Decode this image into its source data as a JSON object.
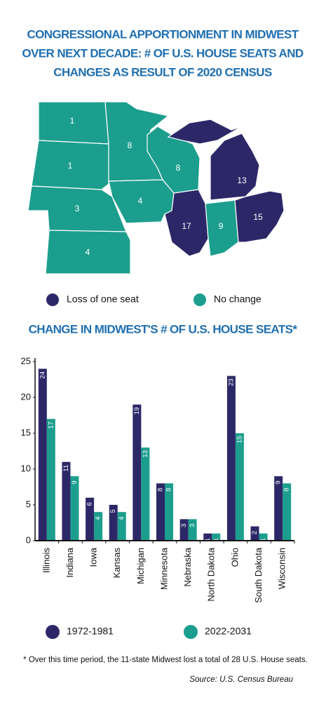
{
  "title": [
    "CONGRESSIONAL APPORTIONMENT IN MIDWEST",
    "OVER NEXT DECADE: # OF U.S. HOUSE SEATS AND",
    "CHANGES AS RESULT OF 2020 CENSUS"
  ],
  "map": {
    "states": [
      {
        "seats": 1,
        "color": "#1c9e8e"
      },
      {
        "seats": 1,
        "color": "#1c9e8e"
      },
      {
        "seats": 3,
        "color": "#1c9e8e"
      },
      {
        "seats": 4,
        "color": "#1c9e8e"
      },
      {
        "seats": 8,
        "color": "#1c9e8e"
      },
      {
        "seats": 4,
        "color": "#1c9e8e"
      },
      {
        "seats": 8,
        "color": "#1c9e8e"
      },
      {
        "seats": 17,
        "color": "#2c2868"
      },
      {
        "seats": 9,
        "color": "#1c9e8e"
      },
      {
        "seats": 13,
        "color": "#2c2868"
      },
      {
        "seats": 15,
        "color": "#2c2868"
      }
    ],
    "legend": [
      {
        "label": "Loss of one seat",
        "color": "#2c2868"
      },
      {
        "label": "No change",
        "color": "#1c9e8e"
      }
    ]
  },
  "chart_data": {
    "type": "bar",
    "title": "CHANGE IN MIDWEST'S # OF U.S. HOUSE SEATS*",
    "categories": [
      "Illinois",
      "Indiana",
      "Iowa",
      "Kansas",
      "Michigan",
      "Minnesota",
      "Nebraska",
      "North Dakota",
      "Ohio",
      "South Dakota",
      "Wisconsin"
    ],
    "series": [
      {
        "name": "1972-1981",
        "color": "#2c2868",
        "values": [
          24,
          11,
          6,
          5,
          19,
          8,
          3,
          1,
          23,
          2,
          9
        ]
      },
      {
        "name": "2022-2031",
        "color": "#1c9e8e",
        "values": [
          17,
          9,
          4,
          4,
          13,
          8,
          3,
          1,
          15,
          1,
          8
        ]
      }
    ],
    "ylim": [
      0,
      25
    ],
    "yticks": [
      0,
      5,
      10,
      15,
      20,
      25
    ]
  },
  "footnote": "* Over this time period, the 11-state Midwest lost a total of 28 U.S. House seats.",
  "source": "Source: U.S. Census Bureau"
}
